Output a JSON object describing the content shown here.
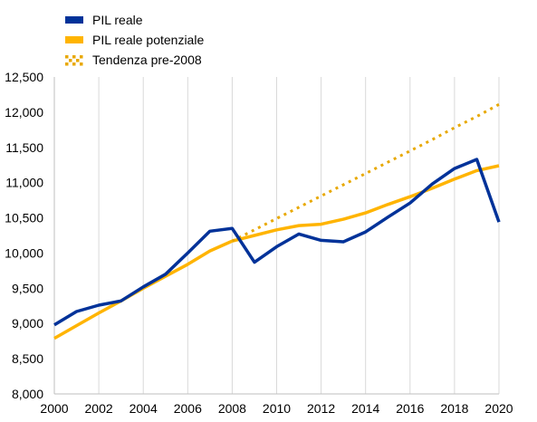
{
  "chart_data": {
    "type": "line",
    "title": "",
    "xlabel": "",
    "ylabel": "",
    "xlim": [
      2000,
      2020
    ],
    "ylim": [
      8000,
      12500
    ],
    "x_ticks": [
      "2000",
      "2002",
      "2004",
      "2006",
      "2008",
      "2010",
      "2012",
      "2014",
      "2016",
      "2018",
      "2020"
    ],
    "x_tick_values": [
      2000,
      2002,
      2004,
      2006,
      2008,
      2010,
      2012,
      2014,
      2016,
      2018,
      2020
    ],
    "y_ticks": [
      "8,000",
      "8,500",
      "9,000",
      "9,500",
      "10,000",
      "10,500",
      "11,000",
      "11,500",
      "12,000",
      "12,500"
    ],
    "y_tick_values": [
      8000,
      8500,
      9000,
      9500,
      10000,
      10500,
      11000,
      11500,
      12000,
      12500
    ],
    "grid": "vertical",
    "legend_position": "top-left",
    "series": [
      {
        "name": "PIL reale",
        "style": "solid",
        "color": "#003299",
        "x": [
          2000,
          2001,
          2002,
          2003,
          2004,
          2005,
          2006,
          2007,
          2008,
          2009,
          2010,
          2011,
          2012,
          2013,
          2014,
          2015,
          2016,
          2017,
          2018,
          2019,
          2020
        ],
        "values": [
          8980,
          9170,
          9260,
          9320,
          9520,
          9700,
          10000,
          10310,
          10350,
          9870,
          10090,
          10270,
          10180,
          10160,
          10300,
          10510,
          10710,
          10980,
          11200,
          11330,
          10440
        ]
      },
      {
        "name": "PIL reale potenziale",
        "style": "solid",
        "color": "#FFB400",
        "x": [
          2000,
          2001,
          2002,
          2003,
          2004,
          2005,
          2006,
          2007,
          2008,
          2009,
          2010,
          2011,
          2012,
          2013,
          2014,
          2015,
          2016,
          2017,
          2018,
          2019,
          2020
        ],
        "values": [
          8790,
          8970,
          9150,
          9320,
          9500,
          9670,
          9840,
          10030,
          10170,
          10250,
          10330,
          10390,
          10410,
          10480,
          10570,
          10690,
          10800,
          10920,
          11050,
          11170,
          11240
        ]
      },
      {
        "name": "Tendenza pre-2008",
        "style": "dotted",
        "color": "#E8A800",
        "x": [
          2008,
          2009,
          2010,
          2011,
          2012,
          2013,
          2014,
          2015,
          2016,
          2017,
          2018,
          2019,
          2020
        ],
        "values": [
          10170,
          10330,
          10490,
          10650,
          10810,
          10970,
          11130,
          11290,
          11450,
          11610,
          11780,
          11940,
          12110
        ]
      }
    ]
  }
}
